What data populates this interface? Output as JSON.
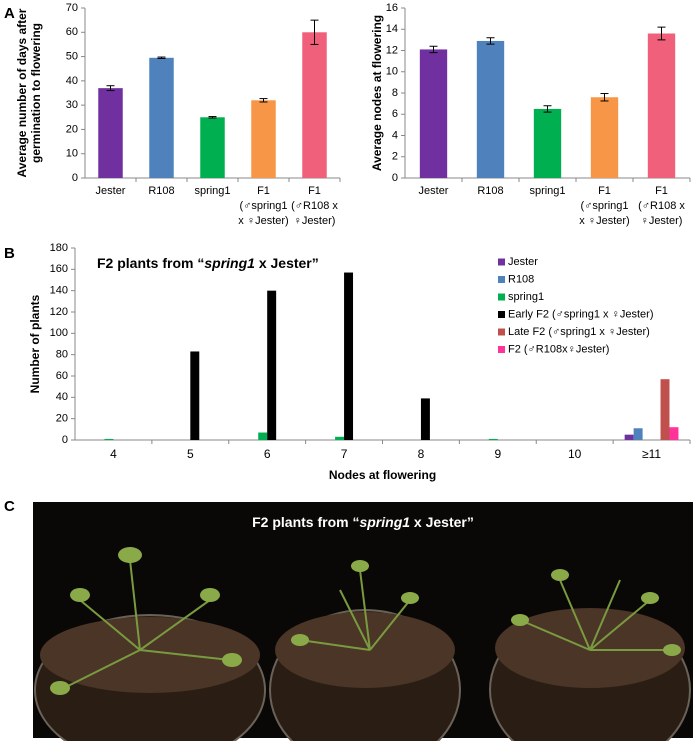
{
  "panel_labels": [
    "A",
    "B",
    "C"
  ],
  "chart_data": [
    {
      "type": "bar",
      "categories": [
        [
          "Jester"
        ],
        [
          "R108"
        ],
        [
          "spring1"
        ],
        [
          "F1",
          "(♂spring1",
          "x ♀Jester)"
        ],
        [
          "F1",
          "(♂R108 x",
          "♀Jester)"
        ]
      ],
      "values": [
        37,
        49.5,
        25,
        32,
        60
      ],
      "errors": [
        1,
        0.3,
        0.3,
        0.7,
        5
      ],
      "colors": [
        "#7030a0",
        "#4f81bd",
        "#00b050",
        "#f79646",
        "#f0607a"
      ],
      "ylabel": [
        "Average number of days after",
        "germination to flowering"
      ],
      "ylim": [
        0,
        70
      ],
      "yticks": [
        0,
        10,
        20,
        30,
        40,
        50,
        60,
        70
      ]
    },
    {
      "type": "bar",
      "categories": [
        [
          "Jester"
        ],
        [
          "R108"
        ],
        [
          "spring1"
        ],
        [
          "F1",
          "(♂spring1",
          "x ♀Jester)"
        ],
        [
          "F1",
          "(♂R108 x",
          "♀Jester)"
        ]
      ],
      "values": [
        12.1,
        12.9,
        6.5,
        7.6,
        13.6
      ],
      "errors": [
        0.3,
        0.3,
        0.3,
        0.35,
        0.6
      ],
      "colors": [
        "#7030a0",
        "#4f81bd",
        "#00b050",
        "#f79646",
        "#f0607a"
      ],
      "ylabel": [
        "Average nodes at flowering"
      ],
      "ylim": [
        0,
        16
      ],
      "yticks": [
        0,
        2,
        4,
        6,
        8,
        10,
        12,
        14,
        16
      ]
    },
    {
      "type": "grouped_bar",
      "title_parts": [
        "F2 plants from “",
        "spring1",
        " x Jester”"
      ],
      "categories": [
        "4",
        "5",
        "6",
        "7",
        "8",
        "9",
        "10",
        "≥11"
      ],
      "series": [
        {
          "name": "Jester",
          "color": "#7030a0",
          "values": [
            0,
            0,
            0,
            0,
            0,
            0,
            0,
            5
          ]
        },
        {
          "name": "R108",
          "color": "#4f81bd",
          "values": [
            0,
            0,
            0,
            0,
            0,
            0,
            0,
            11
          ]
        },
        {
          "name": "spring1",
          "color": "#00b050",
          "values": [
            1,
            0,
            7,
            3,
            0,
            1,
            0,
            0
          ]
        },
        {
          "name": "Early F2 (♂spring1 x ♀Jester)",
          "color": "#000000",
          "values": [
            0,
            83,
            140,
            157,
            39,
            0,
            0,
            0
          ]
        },
        {
          "name": "Late F2 (♂spring1 x ♀Jester)",
          "color": "#c0504d",
          "values": [
            0,
            0,
            0,
            0,
            0,
            0,
            0,
            57
          ]
        },
        {
          "name": "F2 (♂R108x♀Jester)",
          "color": "#ff3399",
          "values": [
            0,
            0,
            0,
            0,
            0,
            0,
            0,
            12
          ]
        }
      ],
      "xlabel": "Nodes at flowering",
      "ylabel": [
        "Number of plants"
      ],
      "ylim": [
        0,
        180
      ],
      "yticks": [
        0,
        20,
        40,
        60,
        80,
        100,
        120,
        140,
        160,
        180
      ],
      "legend": "upper right"
    }
  ],
  "photo": {
    "title_parts": [
      "F2 plants from “",
      "spring1",
      " x Jester”"
    ]
  }
}
